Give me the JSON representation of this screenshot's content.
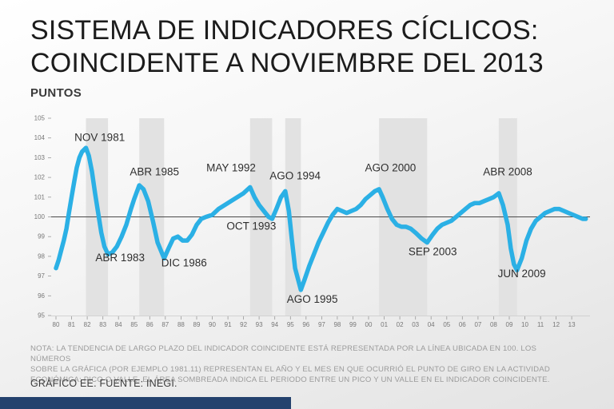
{
  "header": {
    "title_line1": "SISTEMA DE INDICADORES CÍCLICOS:",
    "title_line2": "COINCIDENTE A NOVIEMBRE DEL 2013",
    "axis_title": "PUNTOS"
  },
  "footer": {
    "note_lines": [
      "NOTA: LA TENDENCIA DE LARGO PLAZO DEL INDICADOR COINCIDENTE ESTÁ REPRESENTADA POR LA LÍNEA UBICADA EN 100. LOS NÚMEROS",
      "SOBRE LA GRÁFICA (POR EJEMPLO 1981.11) REPRESENTAN EL AÑO Y EL MES EN QUE OCURRIÓ EL PUNTO DE GIRO EN LA ACTIVIDAD",
      "ECONÓMICA: PICO O VALLE. EL ÁREA SOMBREADA INDICA EL PERIODO ENTRE UN PICO Y UN VALLE EN EL INDICADOR COINCIDENTE."
    ],
    "source": "GRÁFICO EE. FUENTE: INEGI."
  },
  "chart_data": {
    "type": "line",
    "title": "Sistema de Indicadores Cíclicos: Coincidente a Noviembre del 2013",
    "ylabel": "PUNTOS",
    "xlabel": "",
    "ylim": [
      95,
      105
    ],
    "baseline": 100,
    "line_color": "#2bb0e5",
    "band_color": "#e2e2e2",
    "yticks": [
      95,
      96,
      97,
      98,
      99,
      100,
      101,
      102,
      103,
      104,
      105
    ],
    "xticks": [
      "80",
      "81",
      "82",
      "83",
      "84",
      "85",
      "86",
      "87",
      "88",
      "89",
      "90",
      "91",
      "92",
      "93",
      "94",
      "95",
      "96",
      "97",
      "98",
      "99",
      "00",
      "01",
      "02",
      "03",
      "04",
      "05",
      "06",
      "07",
      "08",
      "09",
      "10",
      "11",
      "12",
      "13"
    ],
    "shaded_bands": [
      [
        1981.92,
        1983.33
      ],
      [
        1985.33,
        1986.92
      ],
      [
        1992.42,
        1993.83
      ],
      [
        1994.67,
        1995.67
      ],
      [
        2000.67,
        2003.75
      ],
      [
        2008.33,
        2009.5
      ]
    ],
    "series": [
      {
        "name": "Indicador Coincidente",
        "points": [
          [
            1980.0,
            97.4
          ],
          [
            1980.17,
            97.8
          ],
          [
            1980.33,
            98.3
          ],
          [
            1980.5,
            98.8
          ],
          [
            1980.67,
            99.4
          ],
          [
            1980.83,
            100.2
          ],
          [
            1981.0,
            101.0
          ],
          [
            1981.17,
            101.8
          ],
          [
            1981.33,
            102.5
          ],
          [
            1981.5,
            103.0
          ],
          [
            1981.67,
            103.3
          ],
          [
            1981.92,
            103.5
          ],
          [
            1982.1,
            103.1
          ],
          [
            1982.3,
            102.3
          ],
          [
            1982.5,
            101.2
          ],
          [
            1982.7,
            100.2
          ],
          [
            1982.9,
            99.2
          ],
          [
            1983.1,
            98.5
          ],
          [
            1983.33,
            98.1
          ],
          [
            1983.6,
            98.2
          ],
          [
            1983.9,
            98.5
          ],
          [
            1984.2,
            99.0
          ],
          [
            1984.5,
            99.6
          ],
          [
            1984.8,
            100.4
          ],
          [
            1985.0,
            100.9
          ],
          [
            1985.33,
            101.6
          ],
          [
            1985.6,
            101.4
          ],
          [
            1985.9,
            100.8
          ],
          [
            1986.2,
            99.8
          ],
          [
            1986.5,
            98.7
          ],
          [
            1986.92,
            97.9
          ],
          [
            1987.2,
            98.4
          ],
          [
            1987.5,
            98.9
          ],
          [
            1987.8,
            99.0
          ],
          [
            1988.1,
            98.8
          ],
          [
            1988.4,
            98.8
          ],
          [
            1988.7,
            99.1
          ],
          [
            1989.0,
            99.6
          ],
          [
            1989.3,
            99.9
          ],
          [
            1989.6,
            100.0
          ],
          [
            1990.0,
            100.1
          ],
          [
            1990.4,
            100.4
          ],
          [
            1990.8,
            100.6
          ],
          [
            1991.2,
            100.8
          ],
          [
            1991.6,
            101.0
          ],
          [
            1992.0,
            101.2
          ],
          [
            1992.42,
            101.5
          ],
          [
            1992.7,
            101.0
          ],
          [
            1993.0,
            100.6
          ],
          [
            1993.3,
            100.3
          ],
          [
            1993.6,
            100.0
          ],
          [
            1993.83,
            99.9
          ],
          [
            1994.1,
            100.4
          ],
          [
            1994.4,
            101.0
          ],
          [
            1994.67,
            101.3
          ],
          [
            1994.9,
            100.3
          ],
          [
            1995.1,
            98.8
          ],
          [
            1995.3,
            97.4
          ],
          [
            1995.67,
            96.3
          ],
          [
            1995.9,
            96.8
          ],
          [
            1996.2,
            97.5
          ],
          [
            1996.5,
            98.1
          ],
          [
            1996.8,
            98.7
          ],
          [
            1997.1,
            99.2
          ],
          [
            1997.4,
            99.7
          ],
          [
            1997.7,
            100.1
          ],
          [
            1998.0,
            100.4
          ],
          [
            1998.3,
            100.3
          ],
          [
            1998.6,
            100.2
          ],
          [
            1998.9,
            100.3
          ],
          [
            1999.2,
            100.4
          ],
          [
            1999.5,
            100.6
          ],
          [
            1999.8,
            100.9
          ],
          [
            2000.1,
            101.1
          ],
          [
            2000.4,
            101.3
          ],
          [
            2000.67,
            101.4
          ],
          [
            2000.9,
            101.0
          ],
          [
            2001.2,
            100.4
          ],
          [
            2001.5,
            99.9
          ],
          [
            2001.8,
            99.6
          ],
          [
            2002.1,
            99.5
          ],
          [
            2002.4,
            99.5
          ],
          [
            2002.7,
            99.4
          ],
          [
            2003.0,
            99.2
          ],
          [
            2003.4,
            98.9
          ],
          [
            2003.75,
            98.7
          ],
          [
            2004.1,
            99.1
          ],
          [
            2004.4,
            99.4
          ],
          [
            2004.7,
            99.6
          ],
          [
            2005.0,
            99.7
          ],
          [
            2005.3,
            99.8
          ],
          [
            2005.6,
            100.0
          ],
          [
            2005.9,
            100.2
          ],
          [
            2006.2,
            100.4
          ],
          [
            2006.5,
            100.6
          ],
          [
            2006.8,
            100.7
          ],
          [
            2007.1,
            100.7
          ],
          [
            2007.4,
            100.8
          ],
          [
            2007.7,
            100.9
          ],
          [
            2008.0,
            101.0
          ],
          [
            2008.33,
            101.2
          ],
          [
            2008.6,
            100.6
          ],
          [
            2008.9,
            99.6
          ],
          [
            2009.1,
            98.4
          ],
          [
            2009.3,
            97.6
          ],
          [
            2009.5,
            97.3
          ],
          [
            2009.8,
            97.9
          ],
          [
            2010.1,
            98.8
          ],
          [
            2010.4,
            99.4
          ],
          [
            2010.7,
            99.8
          ],
          [
            2011.0,
            100.0
          ],
          [
            2011.3,
            100.2
          ],
          [
            2011.6,
            100.3
          ],
          [
            2011.9,
            100.4
          ],
          [
            2012.2,
            100.4
          ],
          [
            2012.5,
            100.3
          ],
          [
            2012.8,
            100.2
          ],
          [
            2013.1,
            100.1
          ],
          [
            2013.4,
            100.0
          ],
          [
            2013.7,
            99.9
          ],
          [
            2013.9,
            99.9
          ]
        ]
      }
    ],
    "annotations": [
      {
        "label": "NOV 1981",
        "year": 1982.8,
        "value": 103.85
      },
      {
        "label": "ABR 1985",
        "year": 1986.3,
        "value": 102.1
      },
      {
        "label": "MAY 1992",
        "year": 1991.2,
        "value": 102.3
      },
      {
        "label": "AGO 1994",
        "year": 1995.3,
        "value": 101.9
      },
      {
        "label": "AGO 2000",
        "year": 2001.4,
        "value": 102.3
      },
      {
        "label": "ABR 2008",
        "year": 2008.9,
        "value": 102.1
      },
      {
        "label": "ABR 1983",
        "year": 1984.1,
        "value": 97.75
      },
      {
        "label": "DIC 1986",
        "year": 1988.2,
        "value": 97.5
      },
      {
        "label": "OCT 1993",
        "year": 1992.5,
        "value": 99.35
      },
      {
        "label": "AGO 1995",
        "year": 1996.4,
        "value": 95.65
      },
      {
        "label": "SEP 2003",
        "year": 2004.1,
        "value": 98.05
      },
      {
        "label": "JUN 2009",
        "year": 2009.8,
        "value": 96.95
      }
    ]
  }
}
